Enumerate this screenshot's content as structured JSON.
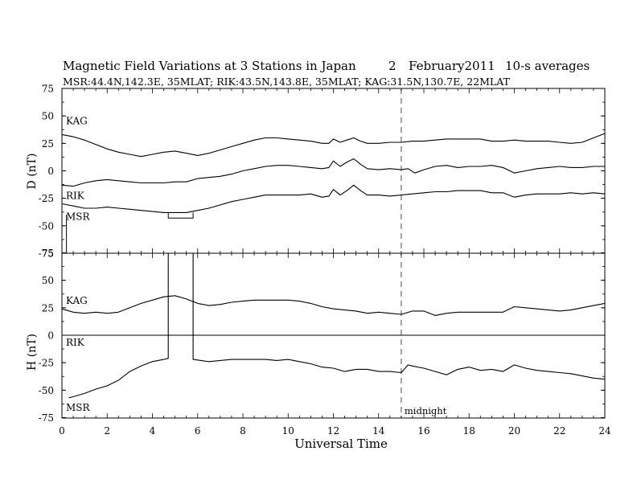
{
  "header": {
    "title": "Magnetic Field Variations at 3 Stations in Japan",
    "day": "2",
    "date": "February2011",
    "averaging": "10-s averages",
    "stations": "MSR:44.4N,142.3E, 35MLAT;  RIK:43.5N,143.8E, 35MLAT;  KAG:31.5N,130.7E, 22MLAT"
  },
  "annotation": {
    "midnight_label": "midnight",
    "midnight_ut": 15
  },
  "chart_data": [
    {
      "type": "line",
      "panel": "top",
      "ylabel": "D (nT)",
      "xlabel": "",
      "xlim": [
        0,
        24
      ],
      "ylim": [
        -75,
        75
      ],
      "yticks": [
        75,
        50,
        25,
        0,
        -25,
        -50,
        -75
      ],
      "xticks": [
        0,
        2,
        4,
        6,
        8,
        10,
        12,
        14,
        16,
        18,
        20,
        22,
        24
      ],
      "grid": false,
      "series": [
        {
          "name": "KAG",
          "x": [
            0,
            0.5,
            1,
            1.5,
            2,
            2.5,
            3,
            3.5,
            4,
            4.5,
            5,
            5.5,
            6,
            6.5,
            7,
            7.5,
            8,
            8.5,
            9,
            9.5,
            10,
            10.5,
            11,
            11.5,
            11.8,
            12,
            12.3,
            12.6,
            12.9,
            13.2,
            13.5,
            14,
            14.5,
            15,
            15.5,
            16,
            16.5,
            17,
            17.5,
            18,
            18.5,
            19,
            19.5,
            20,
            20.5,
            21,
            21.5,
            22,
            22.5,
            23,
            23.5,
            24
          ],
          "values": [
            33,
            31,
            28,
            24,
            20,
            17,
            15,
            13,
            15,
            17,
            18,
            16,
            14,
            16,
            19,
            22,
            25,
            28,
            30,
            30,
            29,
            28,
            27,
            25,
            25,
            29,
            26,
            28,
            30,
            27,
            25,
            25,
            26,
            26,
            27,
            27,
            28,
            29,
            29,
            29,
            29,
            27,
            27,
            28,
            27,
            27,
            27,
            26,
            25,
            26,
            30,
            34
          ]
        },
        {
          "name": "RIK",
          "x": [
            0,
            0.5,
            1,
            1.5,
            2,
            2.5,
            3,
            3.5,
            4,
            4.5,
            5,
            5.5,
            6,
            6.5,
            7,
            7.5,
            8,
            8.5,
            9,
            9.5,
            10,
            10.5,
            11,
            11.5,
            11.8,
            12,
            12.3,
            12.6,
            12.9,
            13.2,
            13.5,
            14,
            14.5,
            15,
            15.3,
            15.6,
            16,
            16.5,
            17,
            17.5,
            18,
            18.5,
            19,
            19.5,
            20,
            20.5,
            21,
            21.5,
            22,
            22.5,
            23,
            23.5,
            24
          ],
          "values": [
            -13,
            -14,
            -11,
            -9,
            -8,
            -9,
            -10,
            -11,
            -11,
            -11,
            -10,
            -10,
            -7,
            -6,
            -5,
            -3,
            0,
            2,
            4,
            5,
            5,
            4,
            3,
            2,
            3,
            9,
            4,
            8,
            11,
            6,
            2,
            1,
            2,
            1,
            2,
            -2,
            1,
            4,
            5,
            3,
            4,
            4,
            5,
            3,
            -2,
            0,
            2,
            3,
            4,
            3,
            3,
            4,
            4
          ]
        },
        {
          "name": "MSR",
          "x": [
            0,
            0.5,
            1,
            1.5,
            2,
            2.5,
            3,
            3.5,
            4,
            4.5,
            5,
            5.5,
            6,
            6.5,
            7,
            7.5,
            8,
            8.5,
            9,
            9.5,
            10,
            10.5,
            11,
            11.5,
            11.8,
            12,
            12.3,
            12.6,
            12.9,
            13.2,
            13.5,
            14,
            14.5,
            15,
            15.5,
            16,
            16.5,
            17,
            17.5,
            18,
            18.5,
            19,
            19.5,
            20,
            20.5,
            21,
            21.5,
            22,
            22.5,
            23,
            23.5,
            24
          ],
          "values": [
            -30,
            -32,
            -34,
            -34,
            -33,
            -34,
            -35,
            -36,
            -37,
            -38,
            -38,
            -38,
            -36,
            -34,
            -31,
            -28,
            -26,
            -24,
            -22,
            -22,
            -22,
            -22,
            -21,
            -24,
            -23,
            -17,
            -22,
            -18,
            -13,
            -18,
            -22,
            -22,
            -23,
            -22,
            -21,
            -20,
            -19,
            -19,
            -18,
            -18,
            -18,
            -20,
            -20,
            -24,
            -22,
            -21,
            -21,
            -21,
            -20,
            -21,
            -20,
            -21
          ]
        },
        {
          "name": "MSR-gap",
          "x": [
            0.2,
            0.2,
            4.7,
            4.7,
            5.8,
            5.8
          ],
          "values": [
            -40,
            -75,
            -38,
            -43,
            -43,
            -38
          ]
        }
      ],
      "series_labels": [
        "KAG",
        "RIK",
        "MSR"
      ]
    },
    {
      "type": "line",
      "panel": "bottom",
      "ylabel": "H (nT)",
      "xlabel": "Universal Time",
      "xlim": [
        0,
        24
      ],
      "ylim": [
        -75,
        100
      ],
      "yticks": [
        75,
        50,
        25,
        0,
        -25,
        -50,
        -75
      ],
      "xticks": [
        0,
        2,
        4,
        6,
        8,
        10,
        12,
        14,
        16,
        18,
        20,
        22,
        24
      ],
      "grid": false,
      "series": [
        {
          "name": "KAG",
          "x": [
            0,
            0.5,
            1,
            1.5,
            2,
            2.5,
            3,
            3.5,
            4,
            4.5,
            5,
            5.5,
            6,
            6.5,
            7,
            7.5,
            8,
            8.5,
            9,
            9.5,
            10,
            10.5,
            11,
            11.5,
            12,
            12.5,
            13,
            13.5,
            14,
            14.5,
            15,
            15.5,
            16,
            16.5,
            17,
            17.5,
            18,
            18.5,
            19,
            19.5,
            20,
            20.5,
            21,
            21.5,
            22,
            22.5,
            23,
            23.5,
            24
          ],
          "values": [
            24,
            21,
            20,
            21,
            20,
            21,
            25,
            29,
            32,
            35,
            36,
            33,
            29,
            27,
            28,
            30,
            31,
            32,
            32,
            32,
            32,
            31,
            29,
            26,
            24,
            23,
            22,
            20,
            21,
            20,
            19,
            22,
            22,
            18,
            20,
            21,
            21,
            21,
            21,
            21,
            26,
            25,
            24,
            23,
            22,
            23,
            25,
            27,
            29
          ]
        },
        {
          "name": "RIK",
          "x": [
            0,
            6,
            12,
            18,
            24
          ],
          "values": [
            0,
            0,
            0,
            0,
            0
          ]
        },
        {
          "name": "MSR",
          "x": [
            0.3,
            0.5,
            1,
            1.5,
            2,
            2.5,
            3,
            3.5,
            4,
            4.5,
            4.7,
            4.7,
            5.8,
            5.8,
            6.5,
            7,
            7.5,
            8,
            8.5,
            9,
            9.5,
            10,
            10.5,
            11,
            11.5,
            12,
            12.5,
            13,
            13.5,
            14,
            14.5,
            15,
            15.3,
            15.5,
            16,
            16.5,
            17,
            17.5,
            18,
            18.5,
            19,
            19.5,
            20,
            20.5,
            21,
            21.5,
            22,
            22.5,
            23,
            23.5,
            24
          ],
          "values": [
            -57,
            -56,
            -53,
            -49,
            -46,
            -41,
            -33,
            -28,
            -24,
            -22,
            -21,
            97,
            97,
            -22,
            -24,
            -23,
            -22,
            -22,
            -22,
            -22,
            -23,
            -22,
            -24,
            -26,
            -29,
            -30,
            -33,
            -31,
            -31,
            -33,
            -33,
            -34,
            -27,
            -28,
            -30,
            -33,
            -36,
            -31,
            -29,
            -32,
            -31,
            -33,
            -27,
            -30,
            -32,
            -33,
            -34,
            -35,
            -37,
            -39,
            -40
          ]
        }
      ],
      "series_labels": [
        "KAG",
        "RIK",
        "MSR"
      ]
    }
  ]
}
